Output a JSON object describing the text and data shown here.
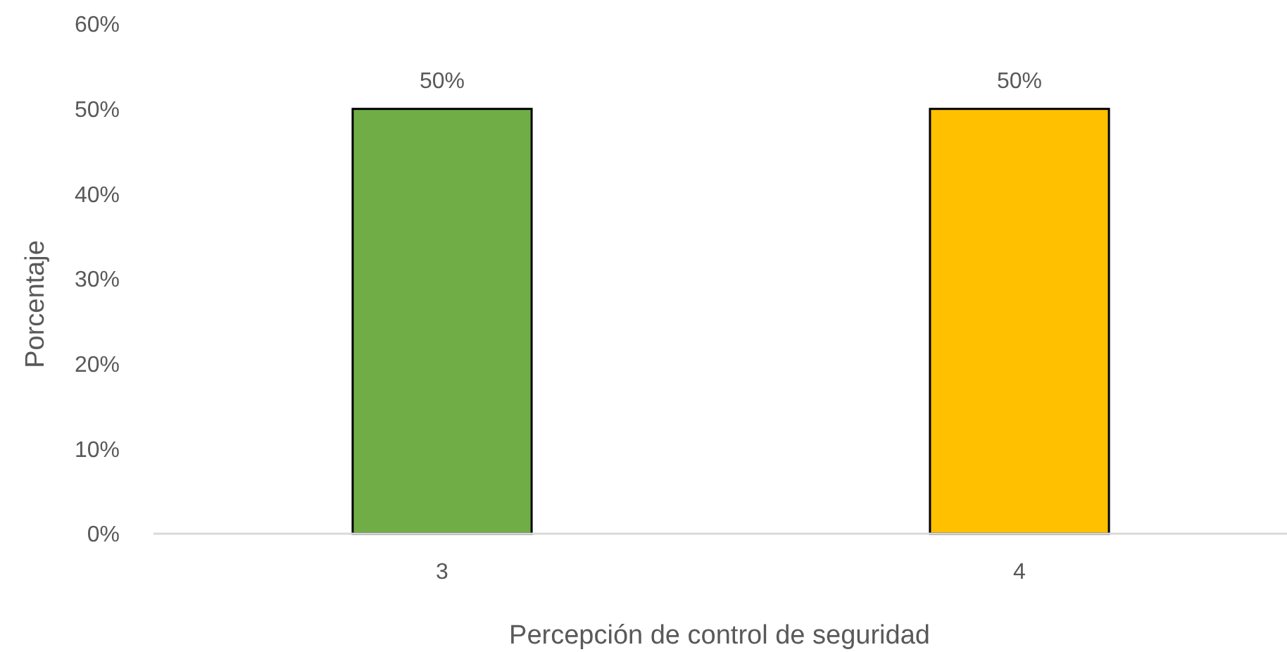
{
  "chart_data": {
    "type": "bar",
    "xlabel": "Percepción de control de seguridad",
    "ylabel": "Porcentaje",
    "categories": [
      "3",
      "4"
    ],
    "values": [
      50,
      50
    ],
    "colors": [
      "#70ad47",
      "#ffc000"
    ],
    "value_labels": [
      "50%",
      "50%"
    ],
    "ylim": [
      0,
      60
    ],
    "yticks": [
      {
        "value": 0,
        "label": "0%"
      },
      {
        "value": 10,
        "label": "10%"
      },
      {
        "value": 20,
        "label": "20%"
      },
      {
        "value": 30,
        "label": "30%"
      },
      {
        "value": 40,
        "label": "40%"
      },
      {
        "value": 50,
        "label": "50%"
      },
      {
        "value": 60,
        "label": "60%"
      }
    ]
  }
}
